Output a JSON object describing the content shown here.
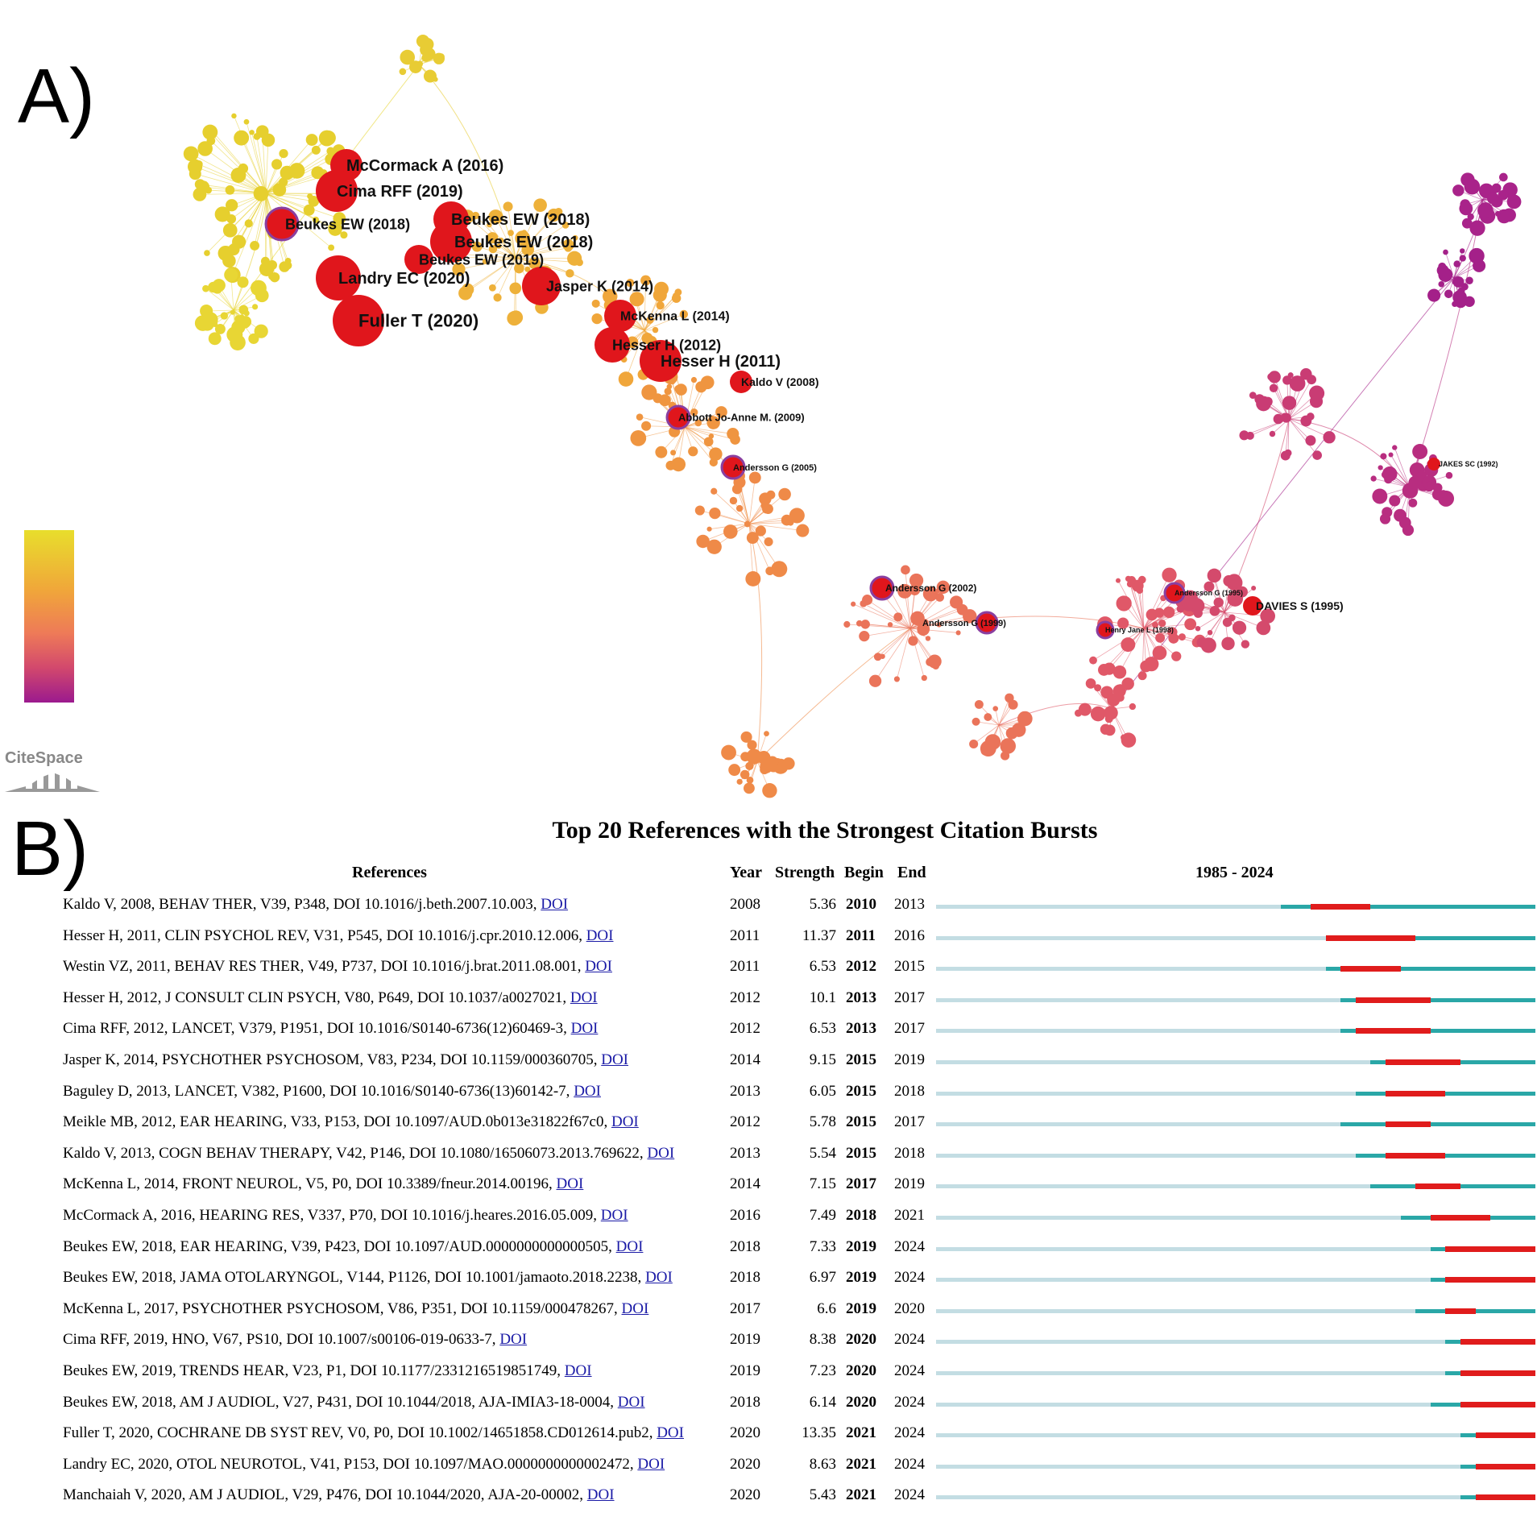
{
  "panel_a": {
    "letter": "A)",
    "logo_text": "CiteSpace",
    "colorbar": [
      "#e8de2c",
      "#f0a63a",
      "#ee7a58",
      "#d2486d",
      "#9b1a8e"
    ],
    "node_labels": [
      "McCormack A (2016)",
      "Cima RFF (2019)",
      "Beukes EW (2018)",
      "Beukes EW (2018)",
      "Beukes EW (2018)",
      "Beukes EW (2019)",
      "Landry EC (2020)",
      "Jasper K (2014)",
      "Fuller T (2020)",
      "McKenna L (2014)",
      "Hesser H (2012)",
      "Hesser H (2011)",
      "Kaldo V (2008)",
      "Abbott Jo-Anne M. (2009)",
      "Andersson G (2005)",
      "JAKES SC (1992)",
      "Andersson G (2002)",
      "Andersson G (1995)",
      "DAVIES S (1995)",
      "Andersson G (1999)",
      "Henry Jane L (1998)"
    ]
  },
  "panel_b": {
    "letter": "B)",
    "title": "Top 20 References with the Strongest Citation Bursts",
    "headers": {
      "references": "References",
      "year": "Year",
      "strength": "Strength",
      "begin": "Begin",
      "end": "End",
      "range": "1985 - 2024"
    },
    "timeline": {
      "start": 1985,
      "end": 2024
    },
    "doi_label": "DOI",
    "rows": [
      {
        "ref": "Kaldo V, 2008, BEHAV THER, V39, P348, DOI 10.1016/j.beth.2007.10.003,",
        "year": "2008",
        "strength": "5.36",
        "begin": "2010",
        "end": "2013"
      },
      {
        "ref": "Hesser H, 2011, CLIN PSYCHOL REV, V31, P545, DOI 10.1016/j.cpr.2010.12.006,",
        "year": "2011",
        "strength": "11.37",
        "begin": "2011",
        "end": "2016"
      },
      {
        "ref": "Westin VZ, 2011, BEHAV RES THER, V49, P737, DOI 10.1016/j.brat.2011.08.001,",
        "year": "2011",
        "strength": "6.53",
        "begin": "2012",
        "end": "2015"
      },
      {
        "ref": "Hesser H, 2012, J CONSULT CLIN PSYCH, V80, P649, DOI 10.1037/a0027021,",
        "year": "2012",
        "strength": "10.1",
        "begin": "2013",
        "end": "2017"
      },
      {
        "ref": "Cima RFF, 2012, LANCET, V379, P1951, DOI 10.1016/S0140-6736(12)60469-3,",
        "year": "2012",
        "strength": "6.53",
        "begin": "2013",
        "end": "2017"
      },
      {
        "ref": "Jasper K, 2014, PSYCHOTHER PSYCHOSOM, V83, P234, DOI 10.1159/000360705,",
        "year": "2014",
        "strength": "9.15",
        "begin": "2015",
        "end": "2019"
      },
      {
        "ref": "Baguley D, 2013, LANCET, V382, P1600, DOI 10.1016/S0140-6736(13)60142-7,",
        "year": "2013",
        "strength": "6.05",
        "begin": "2015",
        "end": "2018"
      },
      {
        "ref": "Meikle MB, 2012, EAR HEARING, V33, P153, DOI 10.1097/AUD.0b013e31822f67c0,",
        "year": "2012",
        "strength": "5.78",
        "begin": "2015",
        "end": "2017"
      },
      {
        "ref": "Kaldo V, 2013, COGN BEHAV THERAPY, V42, P146, DOI 10.1080/16506073.2013.769622,",
        "year": "2013",
        "strength": "5.54",
        "begin": "2015",
        "end": "2018"
      },
      {
        "ref": "McKenna L, 2014, FRONT NEUROL, V5, P0, DOI 10.3389/fneur.2014.00196,",
        "year": "2014",
        "strength": "7.15",
        "begin": "2017",
        "end": "2019"
      },
      {
        "ref": "McCormack A, 2016, HEARING RES, V337, P70, DOI 10.1016/j.heares.2016.05.009,",
        "year": "2016",
        "strength": "7.49",
        "begin": "2018",
        "end": "2021"
      },
      {
        "ref": "Beukes EW, 2018, EAR HEARING, V39, P423, DOI 10.1097/AUD.0000000000000505,",
        "year": "2018",
        "strength": "7.33",
        "begin": "2019",
        "end": "2024"
      },
      {
        "ref": "Beukes EW, 2018, JAMA OTOLARYNGOL, V144, P1126, DOI 10.1001/jamaoto.2018.2238,",
        "year": "2018",
        "strength": "6.97",
        "begin": "2019",
        "end": "2024"
      },
      {
        "ref": "McKenna L, 2017, PSYCHOTHER PSYCHOSOM, V86, P351, DOI 10.1159/000478267,",
        "year": "2017",
        "strength": "6.6",
        "begin": "2019",
        "end": "2020"
      },
      {
        "ref": "Cima RFF, 2019, HNO, V67, PS10, DOI 10.1007/s00106-019-0633-7,",
        "year": "2019",
        "strength": "8.38",
        "begin": "2020",
        "end": "2024"
      },
      {
        "ref": "Beukes EW, 2019, TRENDS HEAR, V23, P1, DOI 10.1177/2331216519851749,",
        "year": "2019",
        "strength": "7.23",
        "begin": "2020",
        "end": "2024"
      },
      {
        "ref": "Beukes EW, 2018, AM J AUDIOL, V27, P431, DOI 10.1044/2018, AJA-IMIA3-18-0004,",
        "year": "2018",
        "strength": "6.14",
        "begin": "2020",
        "end": "2024"
      },
      {
        "ref": "Fuller T, 2020, COCHRANE DB SYST REV, V0, P0, DOI 10.1002/14651858.CD012614.pub2,",
        "year": "2020",
        "strength": "13.35",
        "begin": "2021",
        "end": "2024"
      },
      {
        "ref": "Landry EC, 2020, OTOL NEUROTOL, V41, P153, DOI 10.1097/MAO.0000000000002472,",
        "year": "2020",
        "strength": "8.63",
        "begin": "2021",
        "end": "2024"
      },
      {
        "ref": "Manchaiah V, 2020, AM J AUDIOL, V29, P476, DOI 10.1044/2020, AJA-20-00002,",
        "year": "2020",
        "strength": "5.43",
        "begin": "2021",
        "end": "2024"
      }
    ]
  }
}
